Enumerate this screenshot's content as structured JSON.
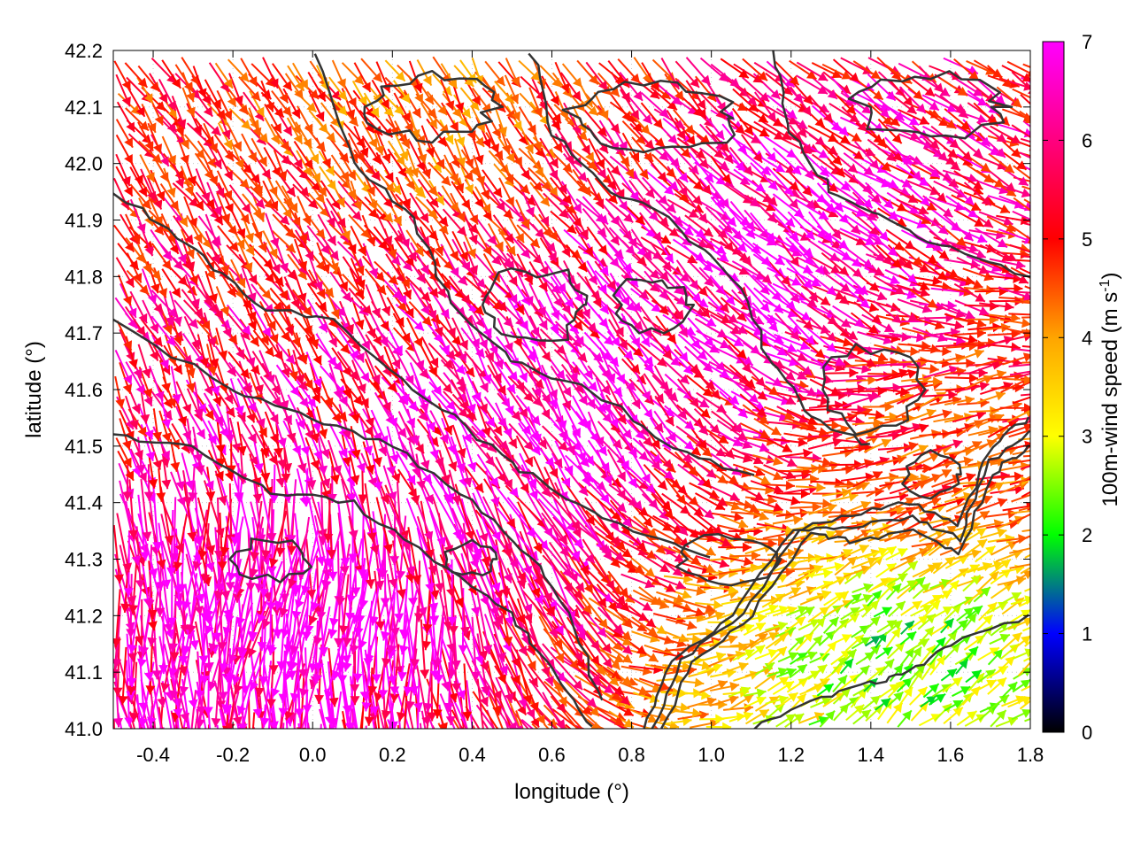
{
  "chart_data": {
    "type": "vector-field",
    "xlabel": "longitude (°)",
    "ylabel": "latitude (°)",
    "xlim": [
      -0.5,
      1.8
    ],
    "ylim": [
      41.0,
      42.2
    ],
    "x_ticks": [
      "-0.4",
      "-0.2",
      "0.0",
      "0.2",
      "0.4",
      "0.6",
      "0.8",
      "1.0",
      "1.2",
      "1.4",
      "1.6",
      "1.8"
    ],
    "y_ticks": [
      "41.0",
      "41.1",
      "41.2",
      "41.3",
      "41.4",
      "41.5",
      "41.6",
      "41.7",
      "41.8",
      "41.9",
      "42.0",
      "42.1",
      "42.2"
    ],
    "grid": "dotted",
    "colorbar": {
      "label_main": "100m-wind speed (m s",
      "label_sup": "-1",
      "label_close": ")",
      "range": [
        0,
        7
      ],
      "ticks": [
        "0",
        "1",
        "2",
        "3",
        "4",
        "5",
        "6",
        "7"
      ],
      "colors": [
        "#000000",
        "#0000ff",
        "#00ff00",
        "#ffff00",
        "#ffa500",
        "#ff0000",
        "#ff00ff"
      ]
    },
    "contour_color": "#333333",
    "flow_regions": [
      {
        "region": "southwest",
        "speed_ms": 7.0,
        "direction_to_deg": 260
      },
      {
        "region": "central",
        "speed_ms": 7.0,
        "direction_to_deg": 300
      },
      {
        "region": "northeast",
        "speed_ms": 7.0,
        "direction_to_deg": 320
      },
      {
        "region": "north",
        "speed_ms": 5.0,
        "direction_to_deg": 300
      },
      {
        "region": "east",
        "speed_ms": 5.5,
        "direction_to_deg": 20
      },
      {
        "region": "southeast",
        "speed_ms": 2.5,
        "direction_to_deg": 45
      }
    ]
  }
}
